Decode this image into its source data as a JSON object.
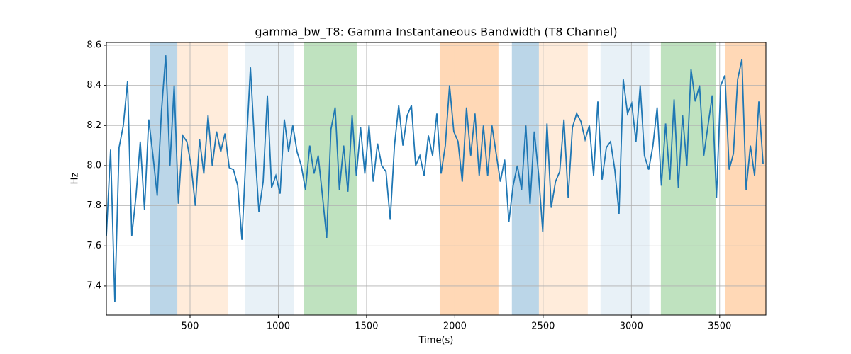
{
  "chart_data": {
    "type": "line",
    "title": "gamma_bw_T8: Gamma Instantaneous Bandwidth (T8 Channel)",
    "x_label": "Time(s)",
    "y_label": "Hz",
    "xlim": [
      26,
      3762
    ],
    "ylim": [
      7.255,
      8.614
    ],
    "xticks": [
      500,
      1000,
      1500,
      2000,
      2500,
      3000,
      3500
    ],
    "yticks": [
      7.4,
      7.6,
      7.8,
      {
        "value": 8,
        "label": "8.0"
      },
      8.2,
      8.4,
      8.6
    ],
    "grid": true,
    "spans": [
      {
        "start": 275,
        "end": 428,
        "color": "#1f77b4",
        "opacity": 0.3
      },
      {
        "start": 428,
        "end": 717,
        "color": "#ff7f0e",
        "opacity": 0.15
      },
      {
        "start": 813,
        "end": 1090,
        "color": "#1f77b4",
        "opacity": 0.1
      },
      {
        "start": 1146,
        "end": 1447,
        "color": "#2ca02c",
        "opacity": 0.3
      },
      {
        "start": 1914,
        "end": 2247,
        "color": "#ff7f0e",
        "opacity": 0.3
      },
      {
        "start": 2323,
        "end": 2476,
        "color": "#1f77b4",
        "opacity": 0.3
      },
      {
        "start": 2476,
        "end": 2753,
        "color": "#ff7f0e",
        "opacity": 0.15
      },
      {
        "start": 2825,
        "end": 3102,
        "color": "#1f77b4",
        "opacity": 0.1
      },
      {
        "start": 3167,
        "end": 3480,
        "color": "#2ca02c",
        "opacity": 0.3
      },
      {
        "start": 3532,
        "end": 3762,
        "color": "#ff7f0e",
        "opacity": 0.3
      }
    ],
    "x": [
      26,
      50,
      74,
      98,
      122,
      146,
      170,
      194,
      218,
      242,
      266,
      290,
      314,
      338,
      362,
      386,
      410,
      434,
      458,
      482,
      506,
      530,
      554,
      578,
      602,
      626,
      650,
      674,
      698,
      722,
      746,
      770,
      794,
      818,
      842,
      866,
      890,
      914,
      938,
      962,
      986,
      1010,
      1034,
      1058,
      1082,
      1106,
      1130,
      1154,
      1178,
      1202,
      1226,
      1250,
      1274,
      1298,
      1322,
      1346,
      1370,
      1394,
      1418,
      1442,
      1466,
      1490,
      1514,
      1538,
      1562,
      1586,
      1610,
      1634,
      1658,
      1682,
      1706,
      1730,
      1754,
      1778,
      1802,
      1826,
      1850,
      1874,
      1898,
      1922,
      1946,
      1970,
      1994,
      2018,
      2042,
      2066,
      2090,
      2114,
      2138,
      2162,
      2186,
      2210,
      2234,
      2258,
      2282,
      2306,
      2330,
      2354,
      2378,
      2402,
      2426,
      2450,
      2474,
      2498,
      2522,
      2546,
      2570,
      2594,
      2618,
      2642,
      2666,
      2690,
      2714,
      2738,
      2762,
      2786,
      2810,
      2834,
      2858,
      2882,
      2906,
      2930,
      2954,
      2978,
      3002,
      3026,
      3050,
      3074,
      3098,
      3122,
      3146,
      3170,
      3194,
      3218,
      3242,
      3266,
      3290,
      3314,
      3338,
      3362,
      3386,
      3410,
      3434,
      3458,
      3482,
      3506,
      3530,
      3554,
      3578,
      3602,
      3626,
      3650,
      3674,
      3698,
      3722,
      3746
    ],
    "series": [
      {
        "color": "#1f77b4",
        "values": [
          7.65,
          8.08,
          7.32,
          8.09,
          8.2,
          8.42,
          7.65,
          7.85,
          8.12,
          7.78,
          8.23,
          8.05,
          7.85,
          8.27,
          8.55,
          8.0,
          8.4,
          7.81,
          8.15,
          8.12,
          8.0,
          7.8,
          8.13,
          7.96,
          8.25,
          8.0,
          8.17,
          8.07,
          8.16,
          7.99,
          7.98,
          7.9,
          7.63,
          8.08,
          8.49,
          8.1,
          7.77,
          7.92,
          8.35,
          7.89,
          7.95,
          7.86,
          8.23,
          8.07,
          8.2,
          8.07,
          8.0,
          7.88,
          8.1,
          7.96,
          8.05,
          7.85,
          7.64,
          8.18,
          8.29,
          7.88,
          8.1,
          7.87,
          8.25,
          7.95,
          8.19,
          7.96,
          8.2,
          7.92,
          8.11,
          8.0,
          7.97,
          7.73,
          8.1,
          8.3,
          8.1,
          8.25,
          8.3,
          8.0,
          8.05,
          7.95,
          8.15,
          8.05,
          8.26,
          7.96,
          8.1,
          8.4,
          8.17,
          8.12,
          7.92,
          8.29,
          8.05,
          8.26,
          7.95,
          8.2,
          7.95,
          8.2,
          8.06,
          7.92,
          8.03,
          7.72,
          7.9,
          8.0,
          7.88,
          8.2,
          7.81,
          8.17,
          7.96,
          7.67,
          8.21,
          7.79,
          7.92,
          7.97,
          8.23,
          7.84,
          8.19,
          8.26,
          8.22,
          8.13,
          8.2,
          7.95,
          8.32,
          7.93,
          8.09,
          8.12,
          7.98,
          7.76,
          8.43,
          8.26,
          8.31,
          8.12,
          8.4,
          8.05,
          7.98,
          8.1,
          8.29,
          7.9,
          8.21,
          7.93,
          8.33,
          7.89,
          8.25,
          8.0,
          8.48,
          8.32,
          8.4,
          8.05,
          8.2,
          8.35,
          7.84,
          8.4,
          8.45,
          7.98,
          8.06,
          8.43,
          8.53,
          7.88,
          8.1,
          7.95,
          8.32,
          8.01
        ]
      }
    ]
  }
}
